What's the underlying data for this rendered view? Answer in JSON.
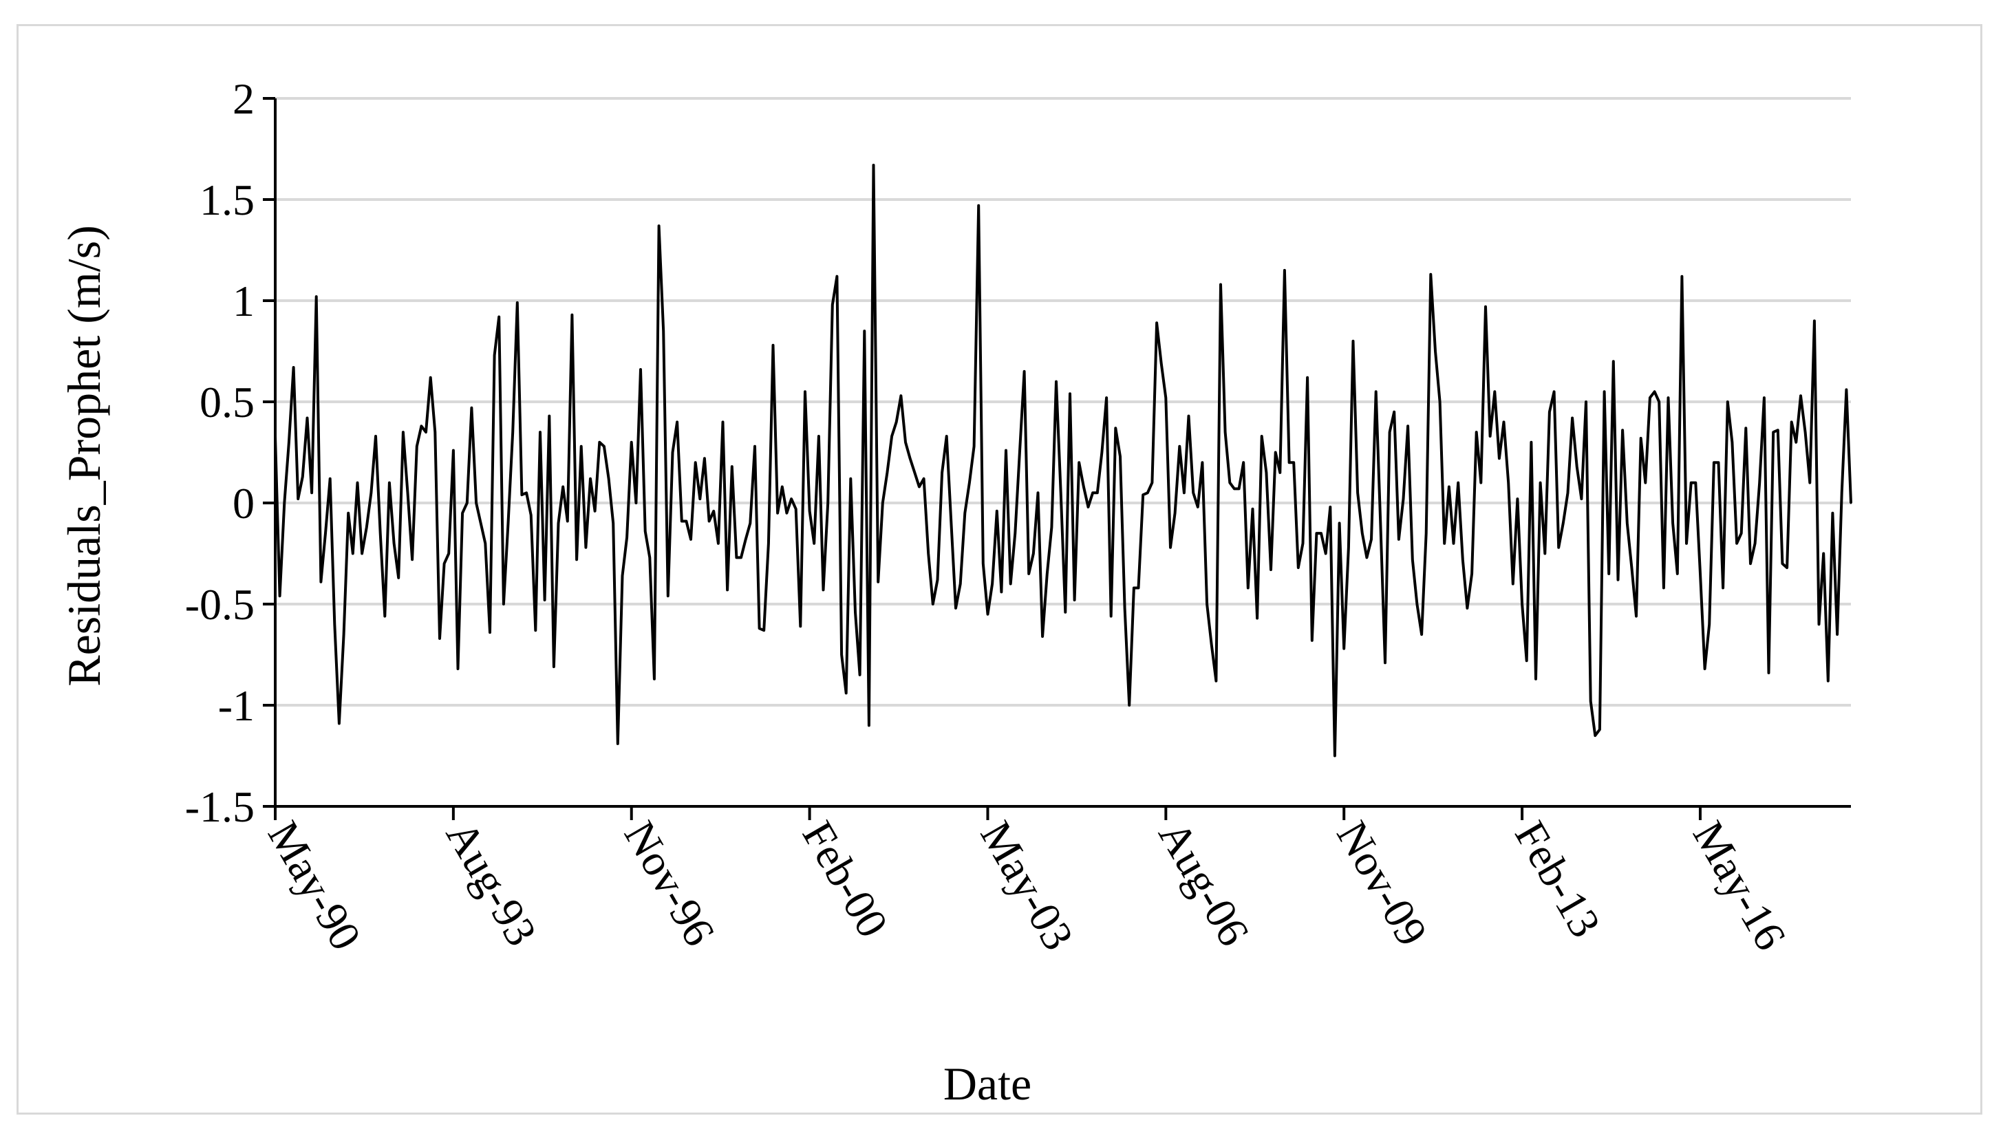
{
  "chart_data": {
    "type": "line",
    "title": "",
    "xlabel": "Date",
    "ylabel": "Residuals_Prophet (m/s)",
    "ylim": [
      -1.5,
      2
    ],
    "yticks": [
      "-1.5",
      "-1",
      "-0.5",
      "0",
      "0.5",
      "1",
      "1.5",
      "2"
    ],
    "xticks": [
      "May-90",
      "Aug-93",
      "Nov-96",
      "Feb-00",
      "May-03",
      "Aug-06",
      "Nov-09",
      "Feb-13",
      "May-16"
    ],
    "x_first": "May-90",
    "x_frequency": "monthly",
    "grid": true,
    "legend": "none",
    "colors": {
      "line": "#000000",
      "grid": "#d9d9d9",
      "axis": "#000000",
      "frame": "#d9d9d9"
    },
    "series": [
      {
        "values": [
          0.33,
          -0.46,
          0.0,
          0.3,
          0.67,
          0.02,
          0.13,
          0.42,
          0.05,
          1.02,
          -0.39,
          -0.15,
          0.12,
          -0.6,
          -1.09,
          -0.65,
          -0.05,
          -0.25,
          0.1,
          -0.25,
          -0.12,
          0.05,
          0.33,
          -0.15,
          -0.56,
          0.1,
          -0.2,
          -0.37,
          0.35,
          0.05,
          -0.28,
          0.28,
          0.38,
          0.35,
          0.62,
          0.35,
          -0.67,
          -0.3,
          -0.25,
          0.26,
          -0.82,
          -0.05,
          0.0,
          0.47,
          0.0,
          -0.1,
          -0.2,
          -0.64,
          0.73,
          0.92,
          -0.5,
          -0.1,
          0.35,
          0.99,
          0.04,
          0.05,
          -0.06,
          -0.63,
          0.35,
          -0.48,
          0.43,
          -0.81,
          -0.1,
          0.08,
          -0.09,
          0.93,
          -0.28,
          0.28,
          -0.22,
          0.12,
          -0.04,
          0.3,
          0.28,
          0.12,
          -0.1,
          -1.19,
          -0.36,
          -0.17,
          0.3,
          0.0,
          0.66,
          -0.14,
          -0.27,
          -0.87,
          1.37,
          0.85,
          -0.46,
          0.25,
          0.4,
          -0.09,
          -0.09,
          -0.18,
          0.2,
          0.02,
          0.22,
          -0.09,
          -0.04,
          -0.2,
          0.4,
          -0.43,
          0.18,
          -0.27,
          -0.27,
          -0.18,
          -0.1,
          0.28,
          -0.62,
          -0.63,
          -0.2,
          0.78,
          -0.05,
          0.08,
          -0.05,
          0.02,
          -0.03,
          -0.61,
          0.55,
          -0.04,
          -0.2,
          0.33,
          -0.43,
          0.0,
          0.98,
          1.12,
          -0.75,
          -0.94,
          0.12,
          -0.54,
          -0.85,
          0.85,
          -1.1,
          1.67,
          -0.39,
          0.0,
          0.15,
          0.33,
          0.4,
          0.53,
          0.3,
          0.22,
          0.15,
          0.08,
          0.12,
          -0.25,
          -0.5,
          -0.38,
          0.15,
          0.33,
          -0.1,
          -0.52,
          -0.4,
          -0.05,
          0.1,
          0.28,
          1.47,
          -0.3,
          -0.55,
          -0.4,
          -0.04,
          -0.44,
          0.26,
          -0.4,
          -0.15,
          0.25,
          0.65,
          -0.35,
          -0.25,
          0.05,
          -0.66,
          -0.35,
          -0.12,
          0.6,
          0.05,
          -0.54,
          0.54,
          -0.48,
          0.2,
          0.08,
          -0.02,
          0.05,
          0.05,
          0.25,
          0.52,
          -0.56,
          0.37,
          0.23,
          -0.52,
          -1.0,
          -0.42,
          -0.42,
          0.04,
          0.05,
          0.1,
          0.89,
          0.69,
          0.52,
          -0.22,
          -0.05,
          0.28,
          0.05,
          0.43,
          0.05,
          -0.02,
          0.2,
          -0.5,
          -0.7,
          -0.88,
          1.08,
          0.35,
          0.1,
          0.07,
          0.07,
          0.2,
          -0.42,
          -0.03,
          -0.57,
          0.33,
          0.15,
          -0.33,
          0.25,
          0.15,
          1.15,
          0.2,
          0.2,
          -0.32,
          -0.2,
          0.62,
          -0.68,
          -0.15,
          -0.15,
          -0.25,
          -0.02,
          -1.25,
          -0.1,
          -0.72,
          -0.22,
          0.8,
          0.05,
          -0.15,
          -0.27,
          -0.18,
          0.55,
          -0.1,
          -0.79,
          0.35,
          0.45,
          -0.18,
          0.02,
          0.38,
          -0.28,
          -0.5,
          -0.65,
          -0.15,
          1.13,
          0.75,
          0.5,
          -0.2,
          0.08,
          -0.2,
          0.1,
          -0.28,
          -0.52,
          -0.35,
          0.35,
          0.1,
          0.97,
          0.33,
          0.55,
          0.22,
          0.4,
          0.1,
          -0.4,
          0.02,
          -0.5,
          -0.78,
          0.3,
          -0.87,
          0.1,
          -0.25,
          0.45,
          0.55,
          -0.22,
          -0.1,
          0.05,
          0.42,
          0.18,
          0.02,
          0.5,
          -0.98,
          -1.15,
          -1.12,
          0.55,
          -0.35,
          0.7,
          -0.38,
          0.36,
          -0.1,
          -0.32,
          -0.56,
          0.32,
          0.1,
          0.52,
          0.55,
          0.5,
          -0.42,
          0.52,
          -0.1,
          -0.35,
          1.12,
          -0.2,
          0.1,
          0.1,
          -0.35,
          -0.82,
          -0.6,
          0.2,
          0.2,
          -0.42,
          0.5,
          0.3,
          -0.2,
          -0.15,
          0.37,
          -0.3,
          -0.2,
          0.1,
          0.52,
          -0.84,
          0.35,
          0.36,
          -0.3,
          -0.32,
          0.4,
          0.3,
          0.53,
          0.35,
          0.1,
          0.9,
          -0.6,
          -0.25,
          -0.88,
          -0.05,
          -0.65,
          0.05,
          0.56,
          0.0
        ]
      }
    ]
  }
}
